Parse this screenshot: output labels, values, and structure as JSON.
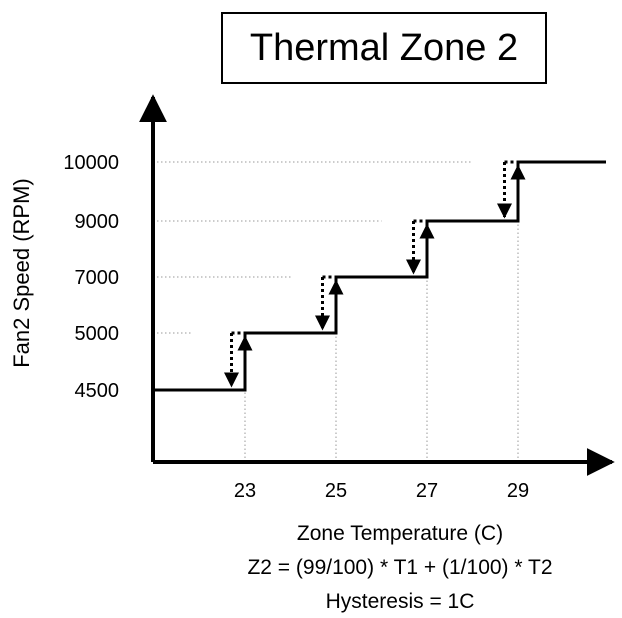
{
  "chart_data": {
    "type": "line",
    "title": "Thermal Zone 2",
    "xlabel": "Zone Temperature (C)",
    "ylabel": "Fan2  Speed (RPM)",
    "annotations": [
      "Z2 = (99/100) * T1 + (1/100) * T2",
      "Hysteresis = 1C"
    ],
    "x_ticks": [
      "23",
      "25",
      "27",
      "29"
    ],
    "y_ticks": [
      "4500",
      "5000",
      "7000",
      "9000",
      "10000"
    ],
    "series": [
      {
        "steps": [
          {
            "temp": 23,
            "from": "4500",
            "to": "5000"
          },
          {
            "temp": 25,
            "from": "5000",
            "to": "7000"
          },
          {
            "temp": 27,
            "from": "7000",
            "to": "9000"
          },
          {
            "temp": 29,
            "from": "9000",
            "to": "10000"
          }
        ],
        "hysteresis_down": [
          {
            "temp": 22,
            "from": "5000",
            "to": "4500"
          },
          {
            "temp": 24,
            "from": "7000",
            "to": "5000"
          },
          {
            "temp": 26,
            "from": "9000",
            "to": "7000"
          },
          {
            "temp": 28,
            "from": "10000",
            "to": "9000"
          }
        ]
      }
    ],
    "grid": "dotted guides at ticks"
  }
}
